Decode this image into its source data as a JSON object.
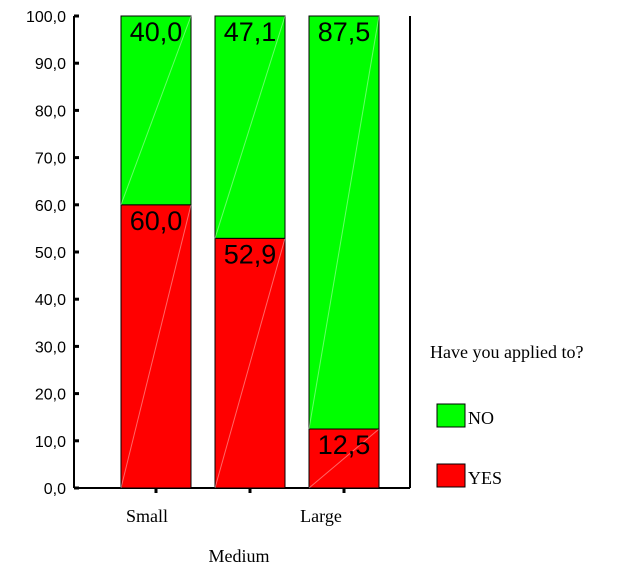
{
  "chart_data": {
    "type": "bar",
    "stacked": true,
    "categories": [
      "Small",
      "Medium",
      "Large"
    ],
    "series": [
      {
        "name": "YES",
        "color": "#ff0000",
        "values": [
          60.0,
          52.9,
          12.5
        ],
        "labels": [
          "60,0",
          "52,9",
          "12,5"
        ]
      },
      {
        "name": "NO",
        "color": "#00ff00",
        "values": [
          40.0,
          47.1,
          87.5
        ],
        "labels": [
          "40,0",
          "47,1",
          "87,5"
        ]
      }
    ],
    "yticks": [
      "0,0",
      "10,0",
      "20,0",
      "30,0",
      "40,0",
      "50,0",
      "60,0",
      "70,0",
      "80,0",
      "90,0",
      "100,0"
    ],
    "ylim": [
      0,
      100
    ],
    "legend_title": "Have you applied to?",
    "legend_position": "right",
    "grid": false
  }
}
